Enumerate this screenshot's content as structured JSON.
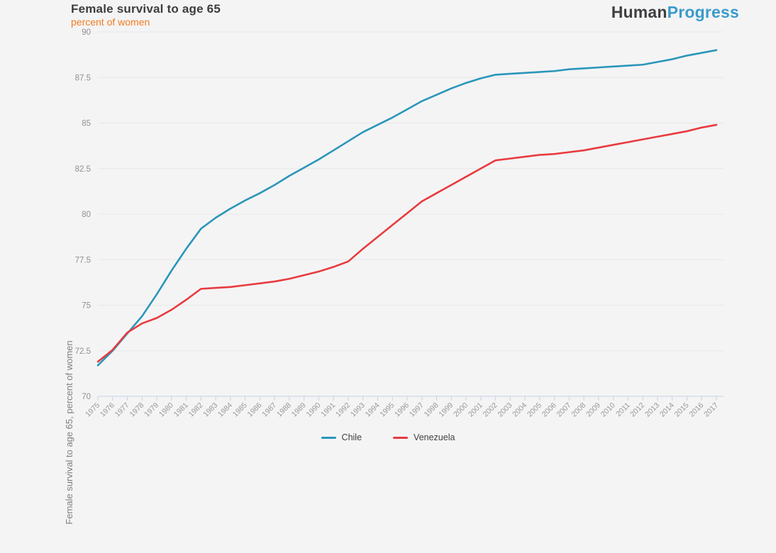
{
  "header": {
    "title": "Female survival to age 65",
    "subtitle": "percent of women",
    "logo_part1": "Human",
    "logo_part2": "Progress"
  },
  "colors": {
    "background": "#f4f4f5",
    "title_text": "#3d3d3d",
    "subtitle_orange": "#f47b20",
    "logo_dark": "#3f3f41",
    "logo_blue": "#3a9bca",
    "gridline": "#e7e7e8",
    "axis_tick": "#c9d2e4",
    "tick_label": "#909094",
    "chile_teal": "#2a96b9",
    "venezuela_red": "#e83b3e"
  },
  "chart_data": {
    "type": "line",
    "title": "Female survival to age 65",
    "subtitle": "percent of women",
    "xlabel": "",
    "ylabel": "Female survival to age 65, percent of women",
    "ylim": [
      70,
      90
    ],
    "yticks": [
      70,
      72.5,
      75,
      77.5,
      80,
      82.5,
      85,
      87.5,
      90
    ],
    "grid": "horizontal",
    "legend_position": "bottom",
    "x": [
      1975,
      1976,
      1977,
      1978,
      1979,
      1980,
      1981,
      1982,
      1983,
      1984,
      1985,
      1986,
      1987,
      1988,
      1989,
      1990,
      1991,
      1992,
      1993,
      1994,
      1995,
      1996,
      1997,
      1998,
      1999,
      2000,
      2001,
      2002,
      2003,
      2004,
      2005,
      2006,
      2007,
      2008,
      2009,
      2010,
      2011,
      2012,
      2013,
      2014,
      2015,
      2016,
      2017
    ],
    "series": [
      {
        "name": "Chile",
        "color": "#2a96b9",
        "values": [
          71.7,
          72.5,
          73.45,
          74.4,
          75.6,
          76.9,
          78.1,
          79.2,
          79.8,
          80.3,
          80.75,
          81.15,
          81.6,
          82.1,
          82.55,
          83.0,
          83.5,
          84.0,
          84.5,
          84.9,
          85.3,
          85.75,
          86.2,
          86.55,
          86.9,
          87.2,
          87.45,
          87.65,
          87.7,
          87.75,
          87.8,
          87.85,
          87.95,
          88.0,
          88.05,
          88.1,
          88.15,
          88.2,
          88.35,
          88.5,
          88.7,
          88.85,
          89.0
        ]
      },
      {
        "name": "Venezuela",
        "color": "#e83b3e",
        "values": [
          71.9,
          72.55,
          73.5,
          74.0,
          74.3,
          74.75,
          75.3,
          75.9,
          75.95,
          76.0,
          76.1,
          76.2,
          76.3,
          76.45,
          76.65,
          76.85,
          77.1,
          77.4,
          78.1,
          78.75,
          79.4,
          80.05,
          80.7,
          81.15,
          81.6,
          82.05,
          82.5,
          82.95,
          83.05,
          83.15,
          83.25,
          83.3,
          83.4,
          83.5,
          83.65,
          83.8,
          83.95,
          84.1,
          84.25,
          84.4,
          84.55,
          84.75,
          84.9
        ]
      }
    ]
  },
  "legend": {
    "items": [
      {
        "label": "Chile",
        "color": "#2a96b9"
      },
      {
        "label": "Venezuela",
        "color": "#e83b3e"
      }
    ]
  }
}
